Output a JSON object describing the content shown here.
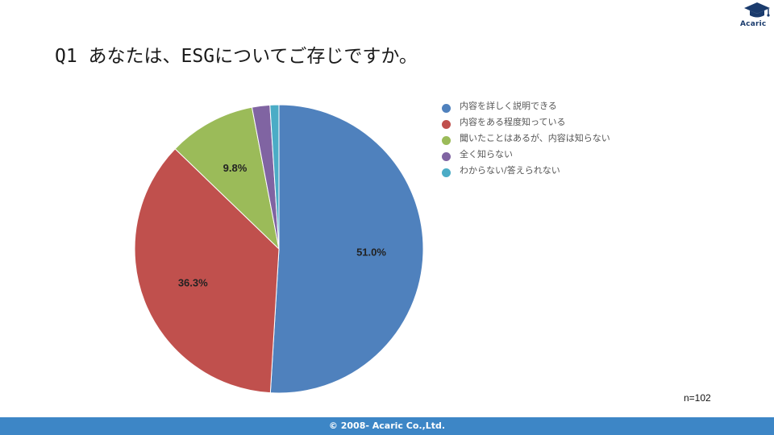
{
  "brand": {
    "name": "Acaric",
    "icon": "graduation-cap-icon",
    "color": "#1a3b6d"
  },
  "slide": {
    "title": "Q1 あなたは、ESGについてご存じですか。"
  },
  "chart_data": {
    "type": "pie",
    "title": "",
    "start_angle_deg": 0,
    "direction": "clockwise",
    "slices": [
      {
        "label": "内容を詳しく説明できる",
        "value": 51.0,
        "value_label": "51.0%",
        "color": "#4f81bd"
      },
      {
        "label": "内容をある程度知っている",
        "value": 36.3,
        "value_label": "36.3%",
        "color": "#c0504d"
      },
      {
        "label": "聞いたことはあるが、内容は知らない",
        "value": 9.8,
        "value_label": "9.8%",
        "color": "#9bbb59"
      },
      {
        "label": "全く知らない",
        "value": 2.0,
        "value_label": "",
        "color": "#8064a2"
      },
      {
        "label": "わからない/答えられない",
        "value": 1.0,
        "value_label": "",
        "color": "#4bacc6"
      }
    ],
    "legend_position": "right",
    "note": "n=102"
  },
  "footer": {
    "text": "© 2008- Acaric Co.,Ltd.",
    "color": "#3d86c6"
  }
}
